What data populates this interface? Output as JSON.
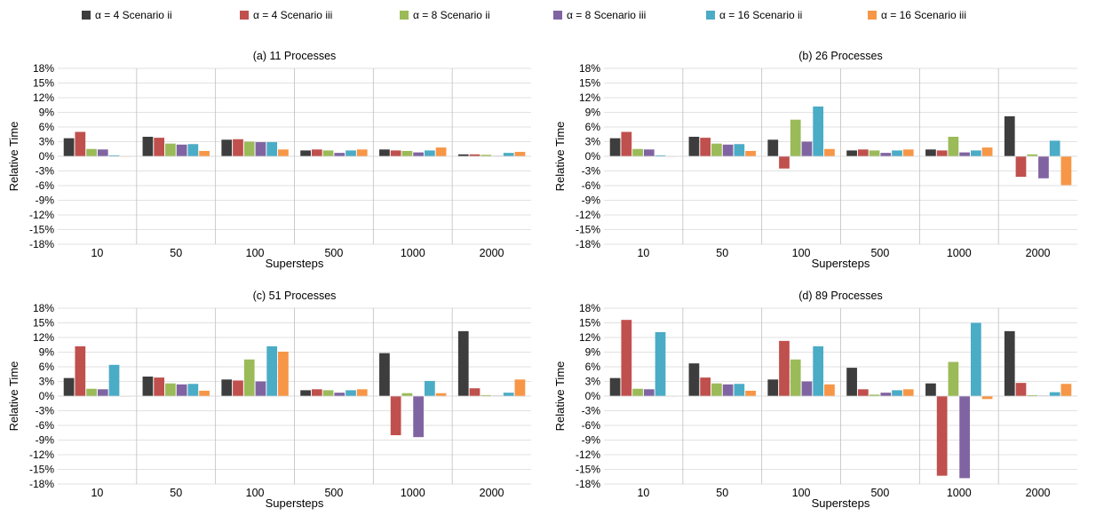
{
  "chart_data": {
    "type": "bar",
    "legend": "top",
    "series": [
      {
        "name": "α = 4 Scenario ii",
        "color": "#3d3d3d"
      },
      {
        "name": "α = 4 Scenario iii",
        "color": "#c0504d"
      },
      {
        "name": "α = 8 Scenario ii",
        "color": "#9bbb59"
      },
      {
        "name": "α = 8 Scenario iii",
        "color": "#8064a2"
      },
      {
        "name": "α = 16 Scenario ii",
        "color": "#4bacc6"
      },
      {
        "name": "α = 16 Scenario iii",
        "color": "#f79646"
      }
    ],
    "panels": [
      {
        "title": "(a) 11 Processes",
        "xlabel": "Supersteps",
        "ylabel": "Relative Time",
        "categories": [
          "10",
          "50",
          "100",
          "500",
          "1000",
          "2000"
        ],
        "ylim": [
          -18,
          18
        ],
        "yticks": [
          "18%",
          "15%",
          "12%",
          "9%",
          "6%",
          "3%",
          "0%",
          "-3%",
          "-6%",
          "-9%",
          "-12%",
          "-15%",
          "-18%"
        ],
        "grid": true,
        "values": [
          [
            3.7,
            5.0,
            1.5,
            1.4,
            0.2,
            0.0
          ],
          [
            4.0,
            3.8,
            2.6,
            2.4,
            2.5,
            1.1
          ],
          [
            3.4,
            3.5,
            3.0,
            2.9,
            2.9,
            1.4
          ],
          [
            1.2,
            1.4,
            1.2,
            0.7,
            1.2,
            1.4
          ],
          [
            1.4,
            1.2,
            1.1,
            0.8,
            1.2,
            1.8
          ],
          [
            0.4,
            0.4,
            0.3,
            0.1,
            0.7,
            0.9
          ]
        ]
      },
      {
        "title": "(b) 26 Processes",
        "xlabel": "Supersteps",
        "ylabel": "Relative Time",
        "categories": [
          "10",
          "50",
          "100",
          "500",
          "1000",
          "2000"
        ],
        "ylim": [
          -18,
          18
        ],
        "yticks": [
          "18%",
          "15%",
          "12%",
          "9%",
          "6%",
          "3%",
          "0%",
          "-3%",
          "-6%",
          "-9%",
          "-12%",
          "-15%",
          "-18%"
        ],
        "grid": true,
        "values": [
          [
            3.7,
            5.0,
            1.5,
            1.4,
            0.2,
            0.0
          ],
          [
            4.0,
            3.8,
            2.6,
            2.4,
            2.5,
            1.1
          ],
          [
            3.4,
            -2.5,
            7.5,
            3.0,
            10.2,
            1.5
          ],
          [
            1.2,
            1.4,
            1.2,
            0.7,
            1.2,
            1.4
          ],
          [
            1.4,
            1.2,
            4.0,
            0.8,
            1.2,
            1.8
          ],
          [
            8.2,
            -4.2,
            0.4,
            -4.5,
            3.2,
            -5.9
          ]
        ]
      },
      {
        "title": "(c) 51 Processes",
        "xlabel": "Supersteps",
        "ylabel": "Relative Time",
        "categories": [
          "10",
          "50",
          "100",
          "500",
          "1000",
          "2000"
        ],
        "ylim": [
          -18,
          18
        ],
        "yticks": [
          "18%",
          "15%",
          "12%",
          "9%",
          "6%",
          "3%",
          "0%",
          "-3%",
          "-6%",
          "-9%",
          "-12%",
          "-15%",
          "-18%"
        ],
        "grid": true,
        "values": [
          [
            3.7,
            10.2,
            1.5,
            1.4,
            6.4,
            0.0
          ],
          [
            4.0,
            3.8,
            2.6,
            2.4,
            2.5,
            1.1
          ],
          [
            3.4,
            3.2,
            7.5,
            3.0,
            10.2,
            9.1
          ],
          [
            1.2,
            1.4,
            1.2,
            0.7,
            1.2,
            1.4
          ],
          [
            8.8,
            -8.0,
            0.6,
            -8.4,
            3.1,
            0.6
          ],
          [
            13.3,
            1.6,
            0.2,
            0.1,
            0.7,
            3.4
          ]
        ]
      },
      {
        "title": "(d) 89 Processes",
        "xlabel": "Supersteps",
        "ylabel": "Relative Time",
        "categories": [
          "10",
          "50",
          "100",
          "500",
          "1000",
          "2000"
        ],
        "ylim": [
          -18,
          18
        ],
        "yticks": [
          "18%",
          "15%",
          "12%",
          "9%",
          "6%",
          "3%",
          "0%",
          "-3%",
          "-6%",
          "-9%",
          "-12%",
          "-15%",
          "-18%"
        ],
        "grid": true,
        "values": [
          [
            3.7,
            15.6,
            1.5,
            1.4,
            13.1,
            0.0
          ],
          [
            6.7,
            3.8,
            2.6,
            2.4,
            2.5,
            1.1
          ],
          [
            3.4,
            11.3,
            7.5,
            3.0,
            10.2,
            2.4
          ],
          [
            5.8,
            1.4,
            0.3,
            0.7,
            1.2,
            1.4
          ],
          [
            2.6,
            -16.3,
            7.0,
            -16.8,
            15.0,
            -0.6
          ],
          [
            13.3,
            2.7,
            0.2,
            0.1,
            0.8,
            2.5
          ]
        ]
      }
    ]
  }
}
